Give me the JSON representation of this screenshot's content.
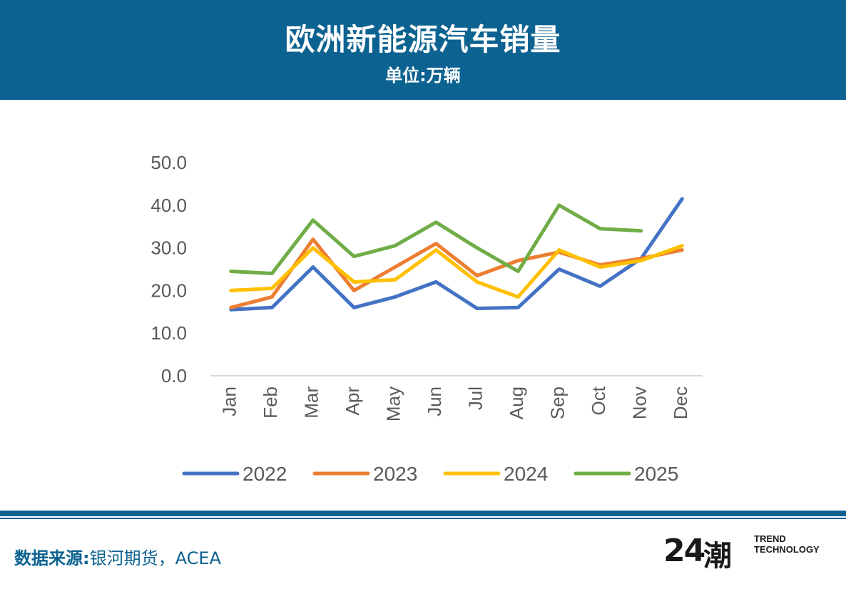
{
  "header": {
    "title": "欧洲新能源汽车销量",
    "subtitle": "单位:万辆"
  },
  "footer": {
    "source_label": "数据来源:",
    "source_text": "银河期货，ACEA",
    "logo_number": "24",
    "logo_glyph": "潮",
    "logo_line1": "TREND",
    "logo_line2": "TECHNOLOGY"
  },
  "colors": {
    "brand": "#0c6290",
    "series_2022": "#4472c4",
    "series_2023": "#ed7d31",
    "series_2024": "#ffc000",
    "series_2025": "#70ad47"
  },
  "chart_data": {
    "type": "line",
    "title": "欧洲新能源汽车销量",
    "ylabel": "万辆",
    "ylim": [
      0,
      50
    ],
    "yticks": [
      "0.0",
      "10.0",
      "20.0",
      "30.0",
      "40.0",
      "50.0"
    ],
    "categories": [
      "Jan",
      "Feb",
      "Mar",
      "Apr",
      "May",
      "Jun",
      "Jul",
      "Aug",
      "Sep",
      "Oct",
      "Nov",
      "Dec"
    ],
    "legend_position": "bottom",
    "series": [
      {
        "name": "2022",
        "color": "#4472c4",
        "values": [
          15.5,
          16.0,
          25.5,
          16.0,
          18.5,
          22.0,
          15.8,
          16.0,
          25.0,
          21.0,
          27.5,
          41.5
        ]
      },
      {
        "name": "2023",
        "color": "#ed7d31",
        "values": [
          16.0,
          18.5,
          32.0,
          20.0,
          25.5,
          31.0,
          23.5,
          27.0,
          29.0,
          26.0,
          27.5,
          29.5
        ]
      },
      {
        "name": "2024",
        "color": "#ffc000",
        "values": [
          20.0,
          20.5,
          30.0,
          22.0,
          22.5,
          29.5,
          22.0,
          18.5,
          29.5,
          25.5,
          27.0,
          30.5
        ]
      },
      {
        "name": "2025",
        "color": "#70ad47",
        "values": [
          24.5,
          24.0,
          36.5,
          28.0,
          30.5,
          36.0,
          30.0,
          24.5,
          40.0,
          34.5,
          34.0,
          null
        ]
      }
    ]
  }
}
